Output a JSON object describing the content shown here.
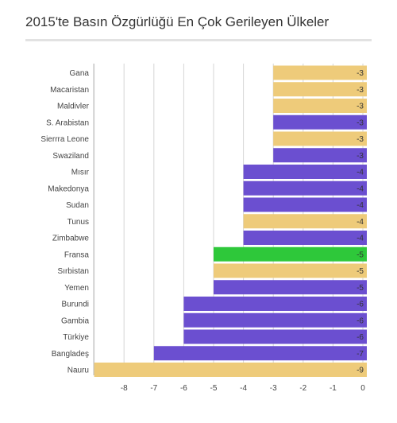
{
  "chart_data": {
    "type": "bar",
    "orientation": "horizontal",
    "title": "2015'te Basın Özgürlüğü En Çok Gerileyen Ülkeler",
    "categories": [
      "Gana",
      "Macaristan",
      "Maldivler",
      "S. Arabistan",
      "Sierrra Leone",
      "Swaziland",
      "Mısır",
      "Makedonya",
      "Sudan",
      "Tunus",
      "Zimbabwe",
      "Fransa",
      "Sırbistan",
      "Yemen",
      "Burundi",
      "Gambia",
      "Türkiye",
      "Bangladeş",
      "Nauru"
    ],
    "values": [
      -3,
      -3,
      -3,
      -3,
      -3,
      -3,
      -4,
      -4,
      -4,
      -4,
      -4,
      -5,
      -5,
      -5,
      -6,
      -6,
      -6,
      -7,
      -9
    ],
    "value_labels": [
      "-3",
      "-3",
      "-3",
      "-3",
      "-3",
      "-3",
      "-4",
      "-4",
      "-4",
      "-4",
      "-4",
      "-5",
      "-5",
      "-5",
      "-6",
      "-6",
      "-6",
      "-7",
      "-9"
    ],
    "bar_colors": [
      "#eecb7a",
      "#eecb7a",
      "#eecb7a",
      "#6b4fd0",
      "#eecb7a",
      "#6b4fd0",
      "#6b4fd0",
      "#6b4fd0",
      "#6b4fd0",
      "#eecb7a",
      "#6b4fd0",
      "#2ec83a",
      "#eecb7a",
      "#6b4fd0",
      "#6b4fd0",
      "#6b4fd0",
      "#6b4fd0",
      "#6b4fd0",
      "#eecb7a"
    ],
    "xlim": [
      -9,
      0
    ],
    "x_ticks": [
      -8,
      -7,
      -6,
      -5,
      -4,
      -3,
      -2,
      -1,
      0
    ],
    "x_tick_labels": [
      "-8",
      "-7",
      "-6",
      "-5",
      "-4",
      "-3",
      "-2",
      "-1",
      "0"
    ],
    "grid": "vertical",
    "legend": "none"
  }
}
